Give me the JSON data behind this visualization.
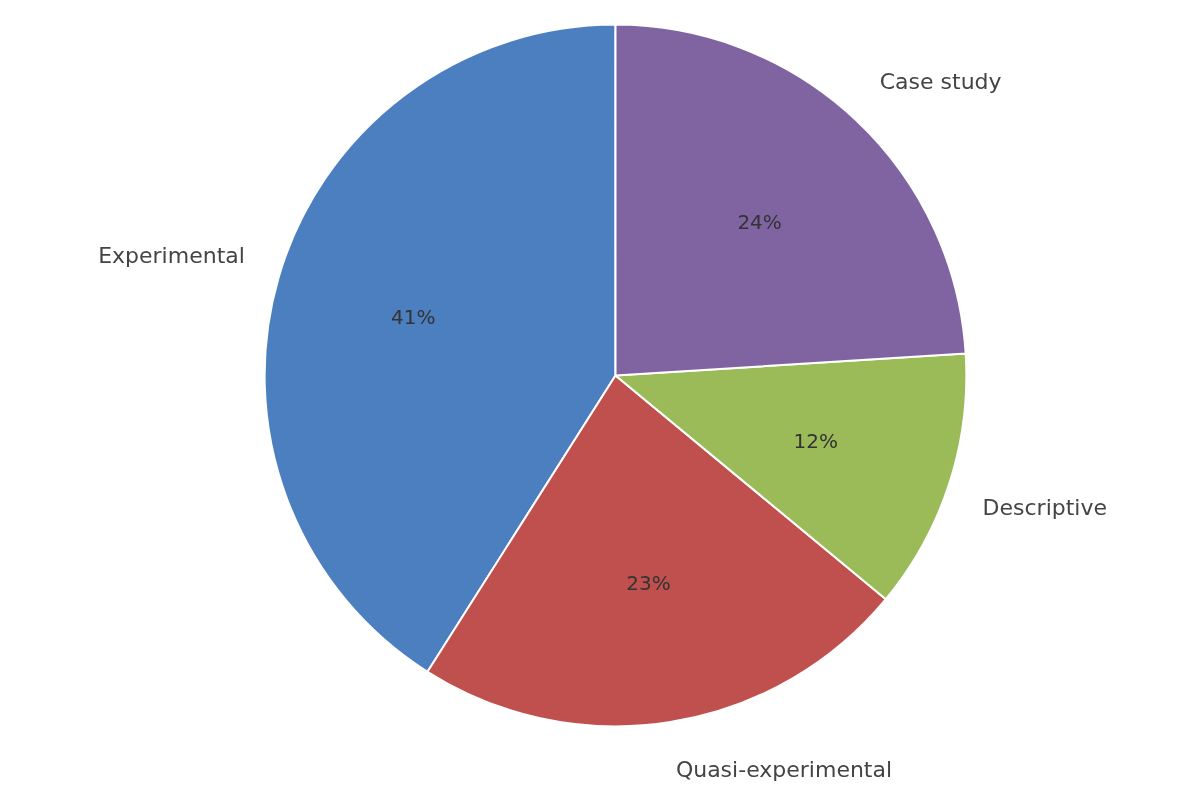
{
  "chart_data": {
    "type": "pie",
    "categories": [
      "Experimental",
      "Quasi-experimental",
      "Descriptive",
      "Case study"
    ],
    "values": [
      41,
      23,
      12,
      24
    ],
    "colors": [
      "#4c7fbf",
      "#c0504d",
      "#9bbb59",
      "#8064a2"
    ],
    "value_labels": [
      "41%",
      "23%",
      "12%",
      "24%"
    ]
  }
}
